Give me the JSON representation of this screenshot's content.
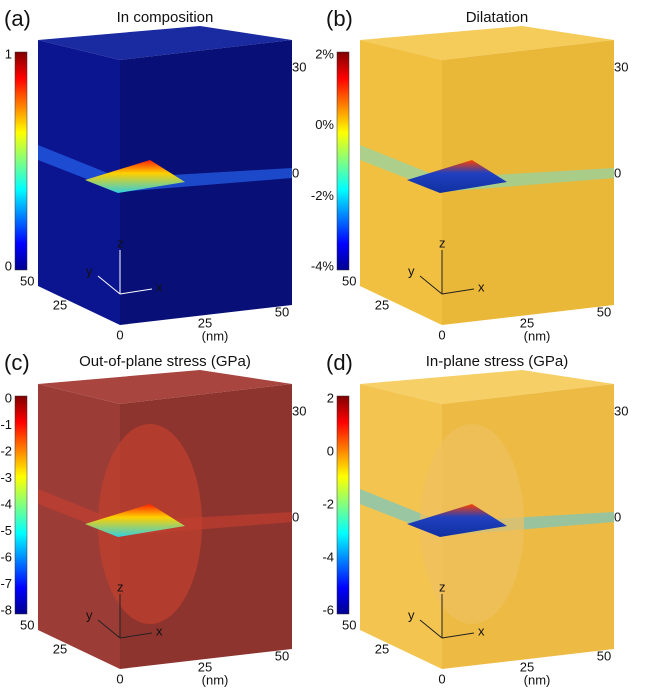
{
  "panels": [
    {
      "label": "(a)",
      "title": "In composition",
      "colorbar_ticks": [
        "1",
        "0"
      ],
      "z_ticks": [
        "30",
        "0"
      ],
      "y_ticks": [
        "50",
        "25",
        "0"
      ],
      "x_ticks": [
        "25",
        "50"
      ],
      "x_unit": "(nm)",
      "axes": [
        "z",
        "y",
        "x"
      ]
    },
    {
      "label": "(b)",
      "title": "Dilatation",
      "colorbar_ticks": [
        "2%",
        "0%",
        "-2%",
        "-4%"
      ],
      "z_ticks": [
        "30",
        "0"
      ],
      "y_ticks": [
        "50",
        "25",
        "0"
      ],
      "x_ticks": [
        "25",
        "50"
      ],
      "x_unit": "(nm)",
      "axes": [
        "z",
        "y",
        "x"
      ]
    },
    {
      "label": "(c)",
      "title": "Out-of-plane stress (GPa)",
      "colorbar_ticks": [
        "0",
        "-1",
        "-2",
        "-3",
        "-4",
        "-5",
        "-6",
        "-7",
        "-8"
      ],
      "z_ticks": [
        "30",
        "0"
      ],
      "y_ticks": [
        "50",
        "25",
        "0"
      ],
      "x_ticks": [
        "25",
        "50"
      ],
      "x_unit": "(nm)",
      "axes": [
        "z",
        "y",
        "x"
      ]
    },
    {
      "label": "(d)",
      "title": "In-plane stress (GPa)",
      "colorbar_ticks": [
        "2",
        "0",
        "-2",
        "-4",
        "-6"
      ],
      "z_ticks": [
        "30",
        "0"
      ],
      "y_ticks": [
        "50",
        "25",
        "0"
      ],
      "x_ticks": [
        "25",
        "50"
      ],
      "x_unit": "(nm)",
      "axes": [
        "z",
        "y",
        "x"
      ]
    }
  ]
}
